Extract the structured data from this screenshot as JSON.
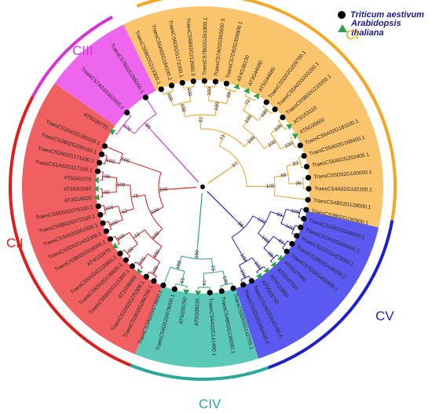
{
  "legend": {
    "items": [
      {
        "label": "Triticum aestivum",
        "marker": "circle",
        "color": "#000000"
      },
      {
        "label": "Arabidopsis thaliana",
        "marker": "triangle",
        "color": "#2e9e4f"
      }
    ]
  },
  "clades": [
    {
      "id": "CI",
      "label": "CI",
      "color": "#f5a623",
      "fill": "#f9c46b",
      "branch": "#e8a020"
    },
    {
      "id": "CIII",
      "label": "CIII",
      "color": "#d633d6",
      "fill": "#ee66ee",
      "branch": "#cc33cc"
    },
    {
      "id": "CII",
      "label": "CII",
      "color": "#e01c1c",
      "fill": "#f06060",
      "branch": "#cc1a1a"
    },
    {
      "id": "CIV",
      "label": "CIV",
      "color": "#2aa89a",
      "fill": "#5cc8b8",
      "branch": "#2a9e8e"
    },
    {
      "id": "CV",
      "label": "CV",
      "color": "#1e1ecc",
      "fill": "#5a5af0",
      "branch": "#2222bb"
    }
  ],
  "leaves": {
    "CI": [
      "TraesCS6B02G213300.1",
      "TraesCS6A02G184100.2",
      "TraesCS6D02G171000.1",
      "TraesCS6B02G212600.3",
      "TraesCS7B02G261800.1",
      "TraesCS7A02G365600.3",
      "TraesCS7D02G356800.1",
      "AT4G38130",
      "AT3G44680",
      "AT5G44680",
      "TraesCS5D02G209700.1",
      "TraesCS5A02G203200.1",
      "TraesCS5B02G210200.1",
      "AT5G53110",
      "AT5G35600",
      "TraesCS6A02G181100.1",
      "TraesCS5A02G168400.1",
      "TraesCS5A02G202400.1",
      "TraesCS5D02G100000.1",
      "TraesCS4A02G132200.1",
      "TraesCS4B02G128000.1"
    ],
    "CIII": [
      "AT5G36770",
      "TraesCS7A02G362600.1",
      "TraesCS7B02G266000.1"
    ],
    "CII": [
      "TraesCS1B02G284700.1",
      "TraesCS1D02G275300.1",
      "AT1G08460",
      "TraesCS5B02G121300.1",
      "TraesCS5D02G126600.1",
      "TraesCS5A02G119300.2",
      "AT4G33470",
      "TraesCS3B02G318000.1",
      "TraesCS3D02G422300.1",
      "TraesCS3A02G063300.1",
      "TraesCS5B02G072100.1",
      "TraesCS5D02G076100.1",
      "AT3G18520",
      "AT5G61060",
      "AT5G61070",
      "TraesCS1A02G117100.1",
      "TraesCS2A02G171100.1",
      "TraesCS2B02G294100.1",
      "TraesCS2D02G185200.1"
    ],
    "CIV": [
      "TraesCS5D02G142700.1",
      "TraesCS4B02G136000.1",
      "TraesCS4A02G141400.1",
      "AT5G09230",
      "AT5G55760",
      "TraesCS4D02G078000.1",
      "TraesCS3A02G073600.1"
    ],
    "CV": [
      "TraesCS2B02G192900.1",
      "TraesCS2D02G149000.1",
      "TraesCS2A02G460400.1",
      "TraesCS2D02G423000.1",
      "TraesCS2B02G446000.2",
      "TraesCS7D02G452600.1",
      "AT2G27940",
      "AT5G47750",
      "AT5G22850",
      "AT5G03740",
      "TraesCS1A02G445700.4",
      "TraesCS1D02G454400.2"
    ]
  },
  "bootstraps": [
    "100",
    "100",
    "100",
    "99",
    "72",
    "100",
    "100",
    "100",
    "93",
    "96",
    "100",
    "100",
    "100",
    "100",
    "89",
    "73",
    "100",
    "100",
    "71",
    "97",
    "100",
    "100",
    "81",
    "98",
    "100",
    "100",
    "83",
    "100",
    "100",
    "100",
    "98",
    "100",
    "74",
    "61",
    "73",
    "100",
    "100",
    "100",
    "100",
    "99",
    "100",
    "100",
    "100",
    "92",
    "96",
    "100",
    "100",
    "72",
    "62",
    "100",
    "100",
    "100",
    "75"
  ]
}
